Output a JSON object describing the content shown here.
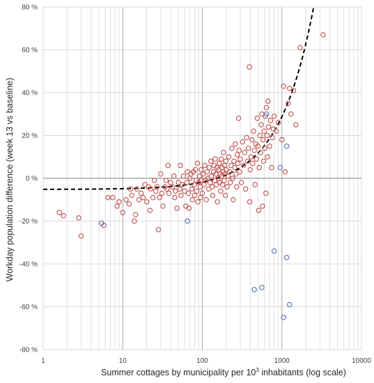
{
  "chart_data": {
    "type": "scatter",
    "xlabel_main": "Summer cottages by municipality per 10",
    "xlabel_sup": "3",
    "xlabel_tail": " inhabitants (log scale)",
    "ylabel": "Workday population difference (week 13 vs baseline)",
    "x_scale": "log",
    "xlim": [
      1,
      10000
    ],
    "ylim": [
      -80,
      80
    ],
    "x_ticks": [
      "1",
      "10",
      "100",
      "1000",
      "10000"
    ],
    "y_ticks": [
      "80 %",
      "60 %",
      "40 %",
      "20 %",
      "0 %",
      "-20 %",
      "-40 %",
      "-60 %",
      "-80 %"
    ],
    "y_tick_values": [
      80,
      60,
      40,
      20,
      0,
      -20,
      -40,
      -60,
      -80
    ],
    "grid": true,
    "colors": {
      "main": "#c0504d",
      "outlier": "#4f6fb5",
      "trend": "#000000",
      "grid": "#d9d9d9"
    },
    "trend": {
      "style": "dashed",
      "form": "a + b*x",
      "a": -5.2,
      "b": 0.034
    },
    "series": [
      {
        "color_key": "main",
        "points": [
          [
            1.6,
            -16
          ],
          [
            1.8,
            -17.5
          ],
          [
            2.8,
            -18.5
          ],
          [
            3,
            -27
          ],
          [
            5.8,
            -22
          ],
          [
            6.5,
            -9
          ],
          [
            7.5,
            -9
          ],
          [
            8.5,
            -13
          ],
          [
            9,
            -11
          ],
          [
            10,
            -16
          ],
          [
            11,
            -10
          ],
          [
            12,
            -12
          ],
          [
            12.5,
            -5
          ],
          [
            13,
            -8
          ],
          [
            14,
            -20
          ],
          [
            14.5,
            -17
          ],
          [
            15,
            -5
          ],
          [
            16,
            -10
          ],
          [
            17,
            -7
          ],
          [
            18,
            -9
          ],
          [
            19,
            -3
          ],
          [
            20,
            -11
          ],
          [
            21,
            -4
          ],
          [
            22,
            -15
          ],
          [
            22.5,
            -5
          ],
          [
            24,
            -9
          ],
          [
            25,
            -1
          ],
          [
            26,
            -6
          ],
          [
            27,
            -4
          ],
          [
            28,
            -24
          ],
          [
            29,
            -9
          ],
          [
            30,
            2
          ],
          [
            31,
            -7
          ],
          [
            32,
            -13
          ],
          [
            34,
            -4
          ],
          [
            35,
            -1
          ],
          [
            36,
            -5
          ],
          [
            37,
            6
          ],
          [
            38,
            -7
          ],
          [
            40,
            -2
          ],
          [
            42,
            -4
          ],
          [
            44,
            1
          ],
          [
            45,
            -9
          ],
          [
            46,
            -6
          ],
          [
            48,
            -14
          ],
          [
            50,
            -2
          ],
          [
            52,
            -5
          ],
          [
            53,
            6
          ],
          [
            54,
            -8
          ],
          [
            56,
            -3
          ],
          [
            58,
            1
          ],
          [
            60,
            -6
          ],
          [
            62,
            -13
          ],
          [
            64,
            -2
          ],
          [
            65,
            3
          ],
          [
            67,
            -7
          ],
          [
            68,
            -14
          ],
          [
            70,
            0
          ],
          [
            72,
            2
          ],
          [
            74,
            -5
          ],
          [
            75,
            -10
          ],
          [
            77,
            3
          ],
          [
            79,
            -3
          ],
          [
            80,
            -8
          ],
          [
            82,
            4
          ],
          [
            84,
            -1
          ],
          [
            85,
            -6
          ],
          [
            87,
            7
          ],
          [
            88,
            -11
          ],
          [
            90,
            -2
          ],
          [
            92,
            1
          ],
          [
            94,
            -4
          ],
          [
            95,
            -9
          ],
          [
            97,
            4
          ],
          [
            98,
            -1
          ],
          [
            100,
            -7
          ],
          [
            102,
            2
          ],
          [
            105,
            -3
          ],
          [
            107,
            6
          ],
          [
            110,
            -1
          ],
          [
            112,
            -10
          ],
          [
            115,
            3
          ],
          [
            117,
            0
          ],
          [
            120,
            -5
          ],
          [
            122,
            5
          ],
          [
            125,
            -2
          ],
          [
            128,
            8
          ],
          [
            130,
            1
          ],
          [
            133,
            -4
          ],
          [
            135,
            -8
          ],
          [
            138,
            3
          ],
          [
            140,
            6
          ],
          [
            143,
            -1
          ],
          [
            145,
            9
          ],
          [
            148,
            2
          ],
          [
            150,
            -3
          ],
          [
            153,
            5
          ],
          [
            155,
            -11
          ],
          [
            158,
            0
          ],
          [
            160,
            4
          ],
          [
            163,
            7
          ],
          [
            165,
            -2
          ],
          [
            168,
            2
          ],
          [
            170,
            -6
          ],
          [
            173,
            9
          ],
          [
            175,
            1
          ],
          [
            178,
            5
          ],
          [
            180,
            -3
          ],
          [
            183,
            3
          ],
          [
            185,
            12
          ],
          [
            188,
            -1
          ],
          [
            190,
            6
          ],
          [
            193,
            2
          ],
          [
            195,
            -8
          ],
          [
            198,
            8
          ],
          [
            200,
            4
          ],
          [
            205,
            -4
          ],
          [
            210,
            1
          ],
          [
            215,
            10
          ],
          [
            220,
            3
          ],
          [
            225,
            -2
          ],
          [
            230,
            6
          ],
          [
            235,
            14
          ],
          [
            240,
            0
          ],
          [
            245,
            -10
          ],
          [
            250,
            8
          ],
          [
            255,
            5
          ],
          [
            260,
            16
          ],
          [
            265,
            2
          ],
          [
            270,
            -4
          ],
          [
            275,
            11
          ],
          [
            280,
            7
          ],
          [
            285,
            28
          ],
          [
            290,
            13
          ],
          [
            295,
            3
          ],
          [
            300,
            9
          ],
          [
            310,
            -2
          ],
          [
            320,
            17
          ],
          [
            330,
            6
          ],
          [
            340,
            12
          ],
          [
            350,
            -5
          ],
          [
            360,
            19
          ],
          [
            370,
            8
          ],
          [
            380,
            14
          ],
          [
            390,
            52
          ],
          [
            395,
            -11
          ],
          [
            400,
            4
          ],
          [
            410,
            10
          ],
          [
            420,
            18
          ],
          [
            430,
            7
          ],
          [
            440,
            22
          ],
          [
            450,
            13
          ],
          [
            460,
            -3
          ],
          [
            470,
            16
          ],
          [
            480,
            9
          ],
          [
            490,
            28
          ],
          [
            500,
            15
          ],
          [
            510,
            -15
          ],
          [
            520,
            5
          ],
          [
            530,
            20
          ],
          [
            540,
            12
          ],
          [
            550,
            25
          ],
          [
            560,
            30
          ],
          [
            570,
            -13
          ],
          [
            580,
            18
          ],
          [
            590,
            8
          ],
          [
            600,
            22
          ],
          [
            610,
            14
          ],
          [
            620,
            29
          ],
          [
            630,
            -7
          ],
          [
            640,
            33
          ],
          [
            650,
            20
          ],
          [
            660,
            10
          ],
          [
            670,
            36
          ],
          [
            680,
            24
          ],
          [
            700,
            15
          ],
          [
            720,
            27
          ],
          [
            740,
            5
          ],
          [
            760,
            19
          ],
          [
            780,
            23
          ],
          [
            800,
            29
          ],
          [
            850,
            22
          ],
          [
            900,
            26
          ],
          [
            1000,
            18
          ],
          [
            1050,
            43
          ],
          [
            1100,
            3
          ],
          [
            1200,
            35
          ],
          [
            1250,
            42
          ],
          [
            1300,
            30
          ],
          [
            1400,
            41
          ],
          [
            1500,
            25
          ],
          [
            1700,
            61
          ],
          [
            3300,
            67
          ]
        ]
      },
      {
        "color_key": "outlier",
        "points": [
          [
            5.4,
            -21
          ],
          [
            65,
            -20
          ],
          [
            450,
            -52
          ],
          [
            560,
            -51
          ],
          [
            640,
            30
          ],
          [
            800,
            -34
          ],
          [
            950,
            5
          ],
          [
            1050,
            -65
          ],
          [
            1150,
            15
          ],
          [
            1150,
            -37
          ],
          [
            1250,
            -59
          ]
        ]
      }
    ]
  }
}
